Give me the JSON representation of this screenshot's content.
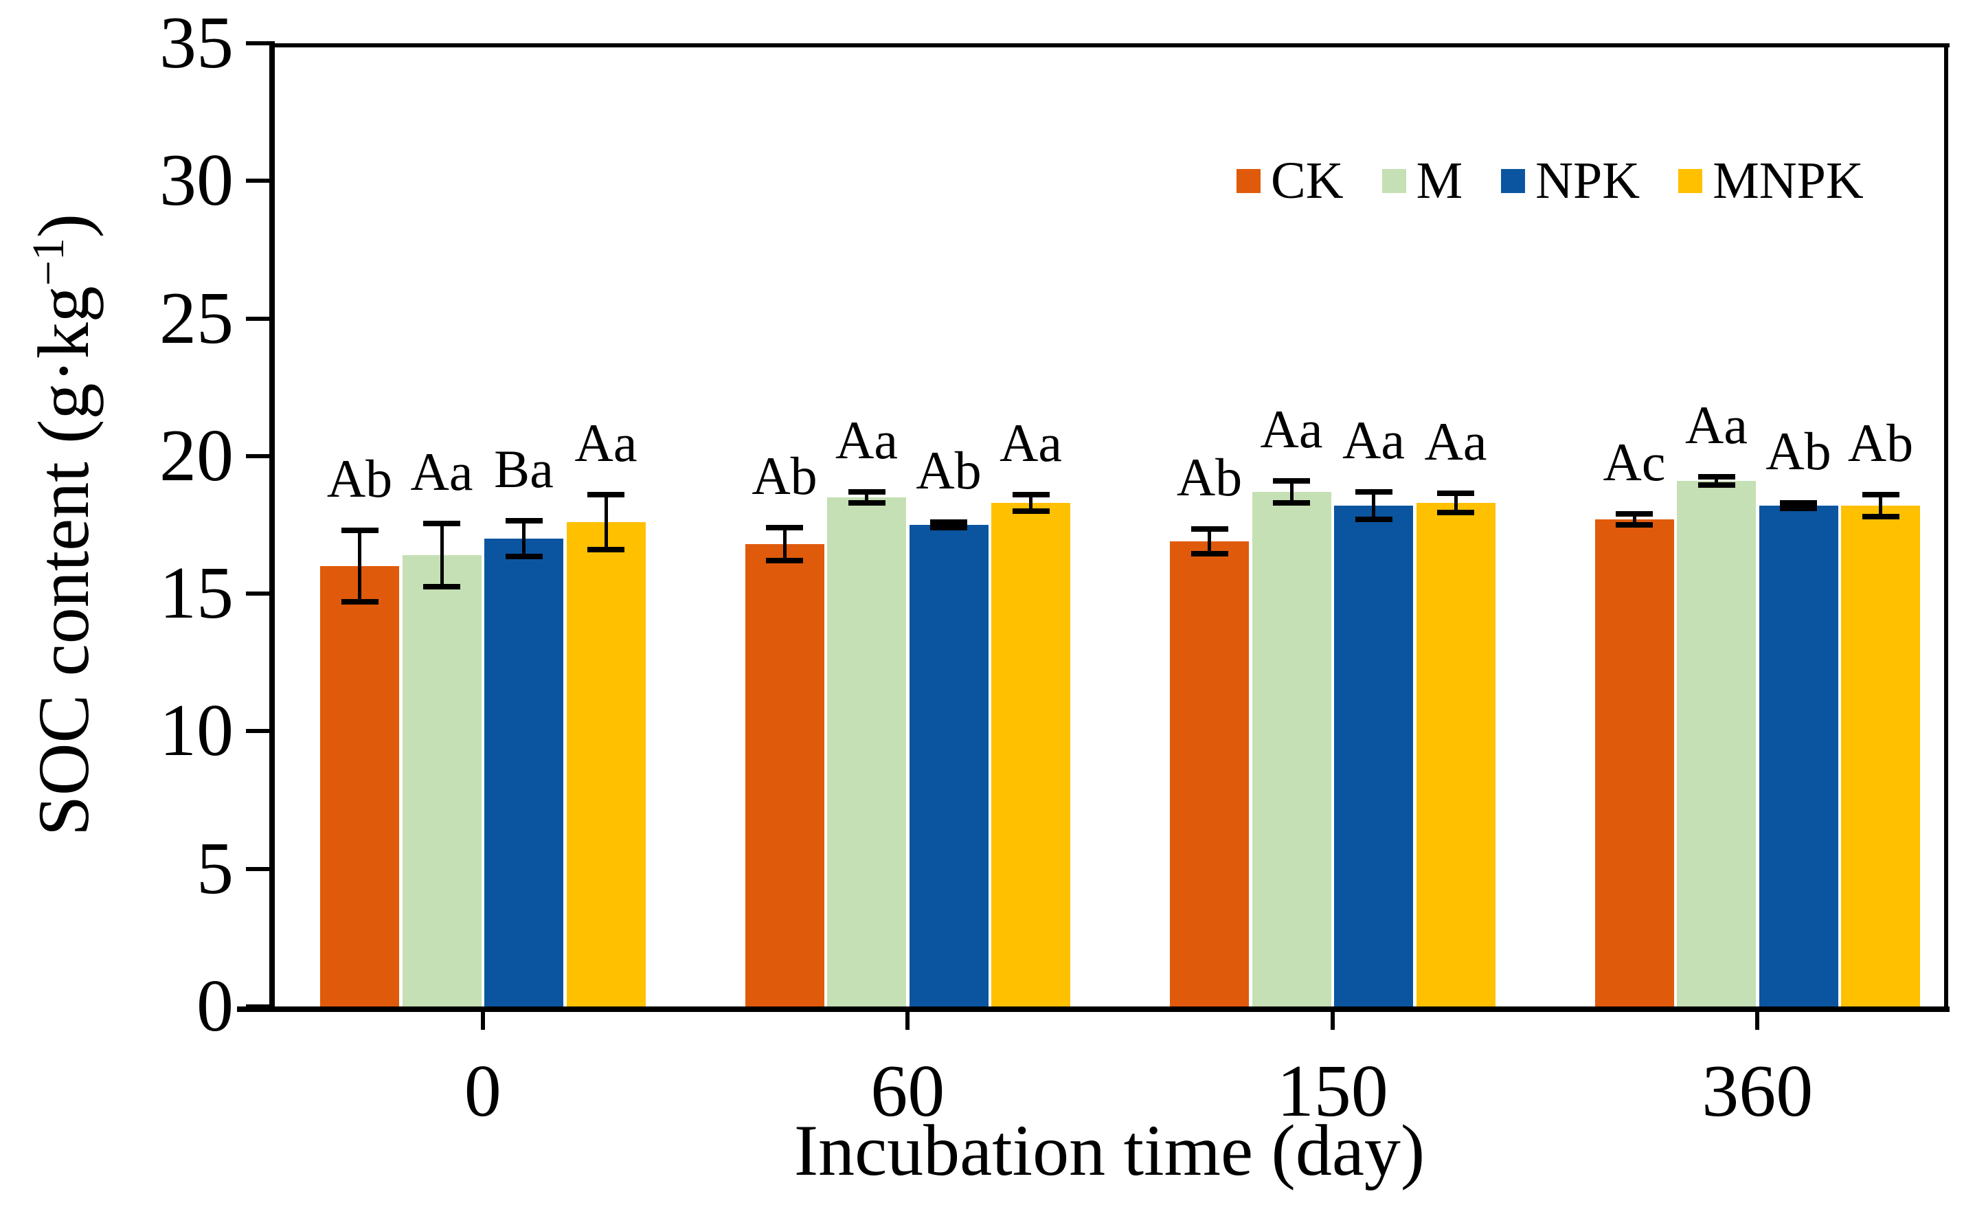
{
  "figure": {
    "background": "#ffffff"
  },
  "legend": {
    "position": "top-right",
    "items": [
      {
        "label": "CK",
        "color": "#E05A0C"
      },
      {
        "label": "M",
        "color": "#C5E0B4"
      },
      {
        "label": "NPK",
        "color": "#0B55A0"
      },
      {
        "label": "MNPK",
        "color": "#FFC000"
      }
    ]
  },
  "axes": {
    "y": {
      "title_main": "SOC content (g·kg",
      "title_sup": "−1",
      "title_close": ")",
      "ticks": [
        0,
        5,
        10,
        15,
        20,
        25,
        30,
        35
      ]
    },
    "x": {
      "title": "Incubation time (day)",
      "categories": [
        "0",
        "60",
        "150",
        "360"
      ]
    }
  },
  "chart_data": {
    "type": "bar",
    "title": "",
    "xlabel": "Incubation time (day)",
    "ylabel": "SOC content (g·kg−1)",
    "ylim": [
      0,
      35
    ],
    "yticks": [
      0,
      5,
      10,
      15,
      20,
      25,
      30,
      35
    ],
    "grid": false,
    "legend_position": "top-right-inside",
    "categories": [
      "0",
      "60",
      "150",
      "360"
    ],
    "series": [
      {
        "name": "CK",
        "color": "#E05A0C",
        "values": [
          16.0,
          16.8,
          16.9,
          17.7
        ],
        "errors": [
          1.3,
          0.6,
          0.45,
          0.2
        ],
        "letters": [
          "Ab",
          "Ab",
          "Ab",
          "Ac"
        ]
      },
      {
        "name": "M",
        "color": "#C5E0B4",
        "values": [
          16.4,
          18.5,
          18.7,
          19.1
        ],
        "errors": [
          1.15,
          0.2,
          0.4,
          0.15
        ],
        "letters": [
          "Aa",
          "Aa",
          "Aa",
          "Aa"
        ]
      },
      {
        "name": "NPK",
        "color": "#0B55A0",
        "values": [
          17.0,
          17.5,
          18.2,
          18.2
        ],
        "errors": [
          0.65,
          0.1,
          0.5,
          0.1
        ],
        "letters": [
          "Ba",
          "Ab",
          "Aa",
          "Ab"
        ]
      },
      {
        "name": "MNPK",
        "color": "#FFC000",
        "values": [
          17.6,
          18.3,
          18.3,
          18.2
        ],
        "errors": [
          1.0,
          0.3,
          0.35,
          0.4
        ],
        "letters": [
          "Aa",
          "Aa",
          "Aa",
          "Ab"
        ]
      }
    ]
  }
}
